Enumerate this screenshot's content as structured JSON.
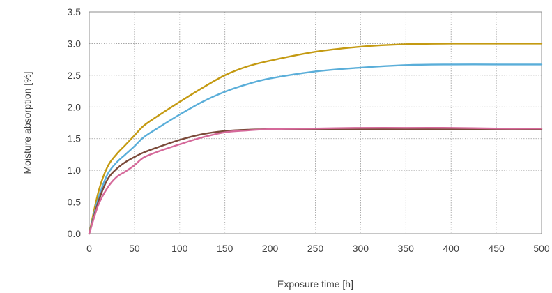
{
  "chart_data": {
    "type": "line",
    "title": "",
    "xlabel": "Exposure time [h]",
    "ylabel": "Moisture absorption [%]",
    "xlim": [
      0,
      500
    ],
    "ylim": [
      0,
      3.5
    ],
    "xticks": [
      "0",
      "50",
      "100",
      "150",
      "200",
      "250",
      "300",
      "350",
      "400",
      "450",
      "500"
    ],
    "yticks": [
      "0.0",
      "0.5",
      "1.0",
      "1.5",
      "2.0",
      "2.5",
      "3.0",
      "3.5"
    ],
    "grid": true,
    "legend": "none",
    "series": [
      {
        "color": "#c49a12",
        "x": [
          0,
          10,
          20,
          30,
          40,
          50,
          60,
          75,
          100,
          125,
          150,
          175,
          200,
          250,
          300,
          350,
          400,
          450,
          500
        ],
        "y": [
          0,
          0.65,
          1.05,
          1.25,
          1.4,
          1.55,
          1.7,
          1.85,
          2.08,
          2.3,
          2.5,
          2.64,
          2.73,
          2.87,
          2.95,
          2.99,
          3.0,
          3.0,
          3.0
        ]
      },
      {
        "color": "#5aaed9",
        "x": [
          0,
          10,
          20,
          30,
          40,
          50,
          60,
          75,
          100,
          125,
          150,
          175,
          200,
          250,
          300,
          350,
          400,
          450,
          500
        ],
        "y": [
          0,
          0.55,
          0.93,
          1.12,
          1.25,
          1.38,
          1.52,
          1.66,
          1.88,
          2.08,
          2.24,
          2.36,
          2.45,
          2.56,
          2.62,
          2.66,
          2.67,
          2.67,
          2.67
        ]
      },
      {
        "color": "#7b4a3a",
        "x": [
          0,
          10,
          20,
          30,
          40,
          50,
          60,
          75,
          100,
          125,
          150,
          175,
          200,
          250,
          300,
          350,
          400,
          450,
          500
        ],
        "y": [
          0,
          0.5,
          0.85,
          1.02,
          1.13,
          1.21,
          1.28,
          1.36,
          1.48,
          1.57,
          1.62,
          1.64,
          1.65,
          1.65,
          1.65,
          1.65,
          1.65,
          1.65,
          1.65
        ]
      },
      {
        "color": "#d5699a",
        "x": [
          0,
          10,
          20,
          30,
          40,
          50,
          60,
          75,
          100,
          125,
          150,
          175,
          200,
          250,
          300,
          350,
          400,
          450,
          500
        ],
        "y": [
          0,
          0.45,
          0.72,
          0.89,
          0.98,
          1.08,
          1.2,
          1.29,
          1.41,
          1.52,
          1.6,
          1.63,
          1.65,
          1.66,
          1.67,
          1.67,
          1.67,
          1.66,
          1.66
        ]
      }
    ]
  }
}
